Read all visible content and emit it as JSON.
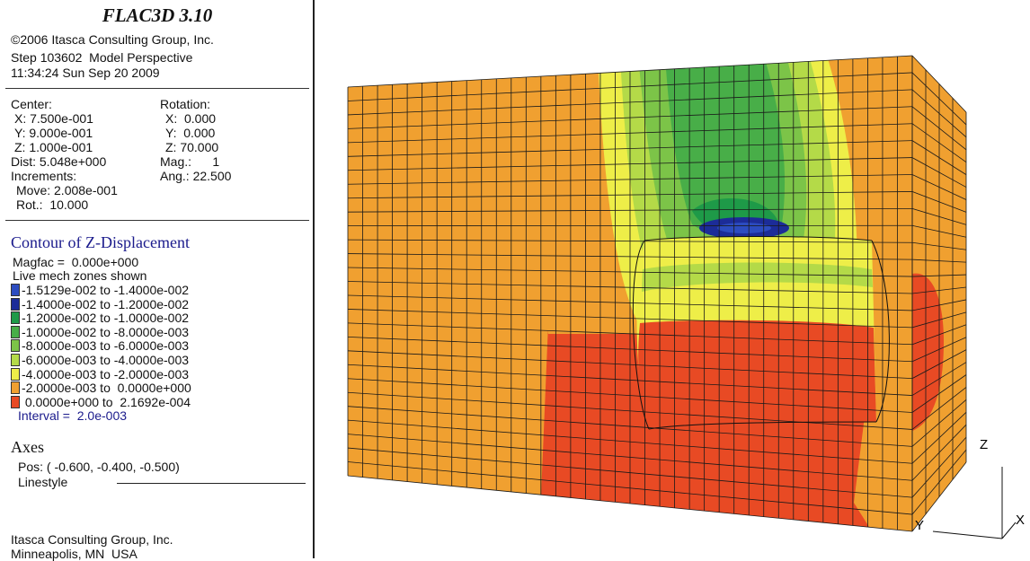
{
  "header": {
    "title": "FLAC3D 3.10",
    "copyright": "©2006 Itasca Consulting Group, Inc.",
    "step": "Step 103602  Model Perspective",
    "time": "11:34:24 Sun Sep 20 2009"
  },
  "view": {
    "center_label": "Center:",
    "center": [
      "X: 7.500e-001",
      "Y: 9.000e-001",
      "Z: 1.000e-001"
    ],
    "rotation_label": "Rotation:",
    "rotation": [
      "X:  0.000",
      "Y:  0.000",
      "Z: 70.000"
    ],
    "dist": "Dist: 5.048e+000",
    "mag": "Mag.:      1",
    "increments": "Increments:",
    "ang": "Ang.: 22.500",
    "move": "Move: 2.008e-001",
    "rot": "Rot.:  10.000"
  },
  "contour": {
    "title": "Contour of Z-Displacement",
    "magfac": "Magfac =  0.000e+000",
    "zones": "Live mech zones shown",
    "legend": [
      {
        "label": "-1.5129e-002 to -1.4000e-002",
        "color": "#2c4cc0"
      },
      {
        "label": "-1.4000e-002 to -1.2000e-002",
        "color": "#1c2c98"
      },
      {
        "label": "-1.2000e-002 to -1.0000e-002",
        "color": "#1e9a48"
      },
      {
        "label": "-1.0000e-002 to -8.0000e-003",
        "color": "#48ae48"
      },
      {
        "label": "-8.0000e-003 to -6.0000e-003",
        "color": "#7cc448"
      },
      {
        "label": "-6.0000e-003 to -4.0000e-003",
        "color": "#b4da48"
      },
      {
        "label": "-4.0000e-003 to -2.0000e-003",
        "color": "#eeee48"
      },
      {
        "label": "-2.0000e-003 to  0.0000e+000",
        "color": "#f0a030"
      },
      {
        "label": " 0.0000e+000 to  2.1692e-004",
        "color": "#e84a24"
      }
    ],
    "interval": "Interval =  2.0e-003"
  },
  "axes": {
    "title": "Axes",
    "pos": "Pos: ( -0.600, -0.400, -0.500)",
    "linestyle": "Linestyle"
  },
  "footer": [
    "Itasca Consulting Group, Inc.",
    "Minneapolis, MN  USA"
  ],
  "axis_labels": [
    "Z",
    "Y",
    "X"
  ]
}
